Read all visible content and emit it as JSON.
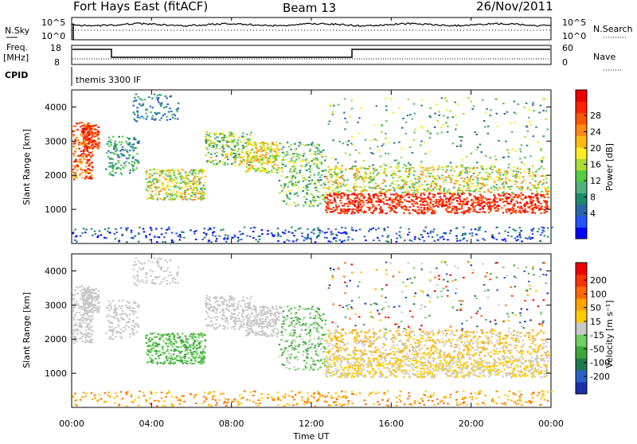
{
  "header": {
    "station": "Fort Hays East (fitACF)",
    "beam": "Beam 13",
    "date": "26/Nov/2011"
  },
  "info_panel": {
    "left_top_label": "N.Sky",
    "left_mid_label_1": "Freq.",
    "left_mid_label_2": "[MHz]",
    "left_bottom_label": "CPID",
    "nsky_ticks": [
      "10^5",
      "10^0"
    ],
    "freq_ticks": [
      "18",
      "8"
    ],
    "right_top_ticks": [
      "10^5",
      "10^0"
    ],
    "right_mid_ticks": [
      "60",
      "0"
    ],
    "right_top_label": "N.Search",
    "right_mid_label": "Nave",
    "cpid_text": "themis 3300 IF"
  },
  "chart_data": [
    {
      "type": "heatmap",
      "name": "power",
      "ylabel": "Slant Range [km]",
      "yticks": [
        "4000",
        "3000",
        "2000",
        "1000"
      ],
      "ylim": [
        0,
        4500
      ],
      "colorbar_label": "Power [dB]",
      "colorbar_ticks": [
        "28",
        "24",
        "20",
        "16",
        "12",
        "8",
        "4"
      ],
      "colorbar_colors": [
        "#0000ff",
        "#2255ff",
        "#2a66a8",
        "#1d8a6c",
        "#4fb080",
        "#55cc44",
        "#aadd33",
        "#ffee22",
        "#ffbb11",
        "#ff8811",
        "#ff5500",
        "#ff2200",
        "#ee0000"
      ]
    },
    {
      "type": "heatmap",
      "name": "velocity",
      "ylabel": "Slant Range [km]",
      "yticks": [
        "4000",
        "3000",
        "2000",
        "1000"
      ],
      "ylim": [
        0,
        4500
      ],
      "colorbar_label": "Velocity [m s⁻¹]",
      "colorbar_ticks": [
        "200",
        "100",
        "50",
        "15",
        "-15",
        "-50",
        "-100",
        "-200"
      ],
      "colorbar_colors": [
        "#1a2fa8",
        "#2a5fc8",
        "#1d7a4f",
        "#3da83a",
        "#6fd05f",
        "#c8c8c8",
        "#ffcc00",
        "#ffa500",
        "#ff6a00",
        "#ff3300",
        "#ee0000"
      ]
    }
  ],
  "xaxis": {
    "ticks": [
      "00:00",
      "04:00",
      "08:00",
      "12:00",
      "16:00",
      "20:00",
      "00:00"
    ],
    "label": "Time UT"
  }
}
